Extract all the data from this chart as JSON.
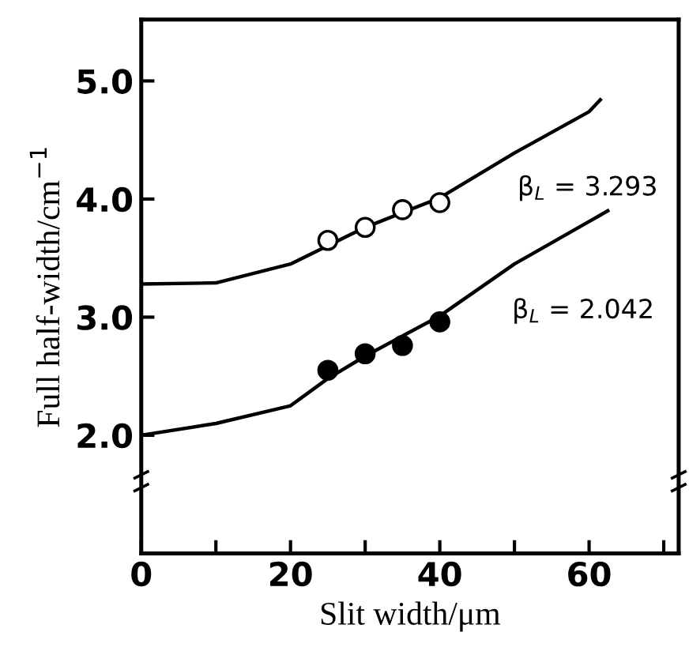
{
  "chart_data": {
    "type": "scatter",
    "xlabel": "Slit width/μm",
    "ylabel": "Full half-width/cm$^{−1}$",
    "xlim": [
      0,
      72
    ],
    "ylim": [
      1.0,
      5.52
    ],
    "xticks": [
      0,
      {
        "value": 10,
        "label": null
      },
      20,
      {
        "value": 30,
        "label": null
      },
      40,
      {
        "value": 50,
        "label": null
      },
      60,
      {
        "value": 70,
        "label": null
      }
    ],
    "yticks": [
      {
        "value": 2,
        "label": "2.0"
      },
      {
        "value": 3,
        "label": "3.0"
      },
      {
        "value": 4,
        "label": "4.0"
      },
      {
        "value": 5,
        "label": "5.0"
      }
    ],
    "grid": false,
    "legend": false,
    "series": [
      {
        "marker": "circle",
        "color": "#ffffff",
        "x": [
          25,
          30,
          35,
          40
        ],
        "values": [
          3.65,
          3.76,
          3.91,
          3.97
        ]
      },
      {
        "marker": "circle",
        "color": "#000000",
        "x": [
          25,
          30,
          35,
          40
        ],
        "values": [
          2.55,
          2.69,
          2.76,
          2.96
        ]
      },
      {
        "type": "line",
        "marker": "none",
        "color": "#000000",
        "x": [
          0,
          10,
          20,
          30,
          40,
          50,
          60,
          61.5
        ],
        "values": [
          3.28,
          3.29,
          3.45,
          3.76,
          4.01,
          4.39,
          4.74,
          4.84
        ]
      },
      {
        "type": "line",
        "marker": "none",
        "color": "#000000",
        "x": [
          0,
          10,
          20,
          25,
          30,
          40,
          50,
          60,
          62.5
        ],
        "values": [
          2.0,
          2.1,
          2.25,
          2.48,
          2.67,
          3.01,
          3.45,
          3.81,
          3.9
        ]
      }
    ],
    "annotations": [
      "β$_{L}$ = 3.293",
      "β$_{L}$ = 2.042"
    ]
  }
}
